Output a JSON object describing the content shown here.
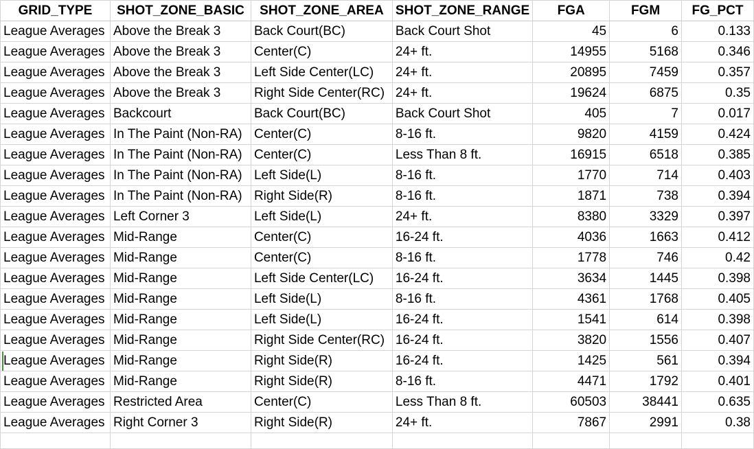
{
  "columns": [
    "GRID_TYPE",
    "SHOT_ZONE_BASIC",
    "SHOT_ZONE_AREA",
    "SHOT_ZONE_RANGE",
    "FGA",
    "FGM",
    "FG_PCT"
  ],
  "rows": [
    [
      "League Averages",
      "Above the Break 3",
      "Back Court(BC)",
      "Back Court Shot",
      "45",
      "6",
      "0.133"
    ],
    [
      "League Averages",
      "Above the Break 3",
      "Center(C)",
      "24+ ft.",
      "14955",
      "5168",
      "0.346"
    ],
    [
      "League Averages",
      "Above the Break 3",
      "Left Side Center(LC)",
      "24+ ft.",
      "20895",
      "7459",
      "0.357"
    ],
    [
      "League Averages",
      "Above the Break 3",
      "Right Side Center(RC)",
      "24+ ft.",
      "19624",
      "6875",
      "0.35"
    ],
    [
      "League Averages",
      "Backcourt",
      "Back Court(BC)",
      "Back Court Shot",
      "405",
      "7",
      "0.017"
    ],
    [
      "League Averages",
      "In The Paint (Non-RA)",
      "Center(C)",
      "8-16 ft.",
      "9820",
      "4159",
      "0.424"
    ],
    [
      "League Averages",
      "In The Paint (Non-RA)",
      "Center(C)",
      "Less Than 8 ft.",
      "16915",
      "6518",
      "0.385"
    ],
    [
      "League Averages",
      "In The Paint (Non-RA)",
      "Left Side(L)",
      "8-16 ft.",
      "1770",
      "714",
      "0.403"
    ],
    [
      "League Averages",
      "In The Paint (Non-RA)",
      "Right Side(R)",
      "8-16 ft.",
      "1871",
      "738",
      "0.394"
    ],
    [
      "League Averages",
      "Left Corner 3",
      "Left Side(L)",
      "24+ ft.",
      "8380",
      "3329",
      "0.397"
    ],
    [
      "League Averages",
      "Mid-Range",
      "Center(C)",
      "16-24 ft.",
      "4036",
      "1663",
      "0.412"
    ],
    [
      "League Averages",
      "Mid-Range",
      "Center(C)",
      "8-16 ft.",
      "1778",
      "746",
      "0.42"
    ],
    [
      "League Averages",
      "Mid-Range",
      "Left Side Center(LC)",
      "16-24 ft.",
      "3634",
      "1445",
      "0.398"
    ],
    [
      "League Averages",
      "Mid-Range",
      "Left Side(L)",
      "8-16 ft.",
      "4361",
      "1768",
      "0.405"
    ],
    [
      "League Averages",
      "Mid-Range",
      "Left Side(L)",
      "16-24 ft.",
      "1541",
      "614",
      "0.398"
    ],
    [
      "League Averages",
      "Mid-Range",
      "Right Side Center(RC)",
      "16-24 ft.",
      "3820",
      "1556",
      "0.407"
    ],
    [
      "League Averages",
      "Mid-Range",
      "Right Side(R)",
      "16-24 ft.",
      "1425",
      "561",
      "0.394"
    ],
    [
      "League Averages",
      "Mid-Range",
      "Right Side(R)",
      "8-16 ft.",
      "4471",
      "1792",
      "0.401"
    ],
    [
      "League Averages",
      "Restricted Area",
      "Center(C)",
      "Less Than 8 ft.",
      "60503",
      "38441",
      "0.635"
    ],
    [
      "League Averages",
      "Right Corner 3",
      "Right Side(R)",
      "24+ ft.",
      "7867",
      "2991",
      "0.38"
    ]
  ]
}
